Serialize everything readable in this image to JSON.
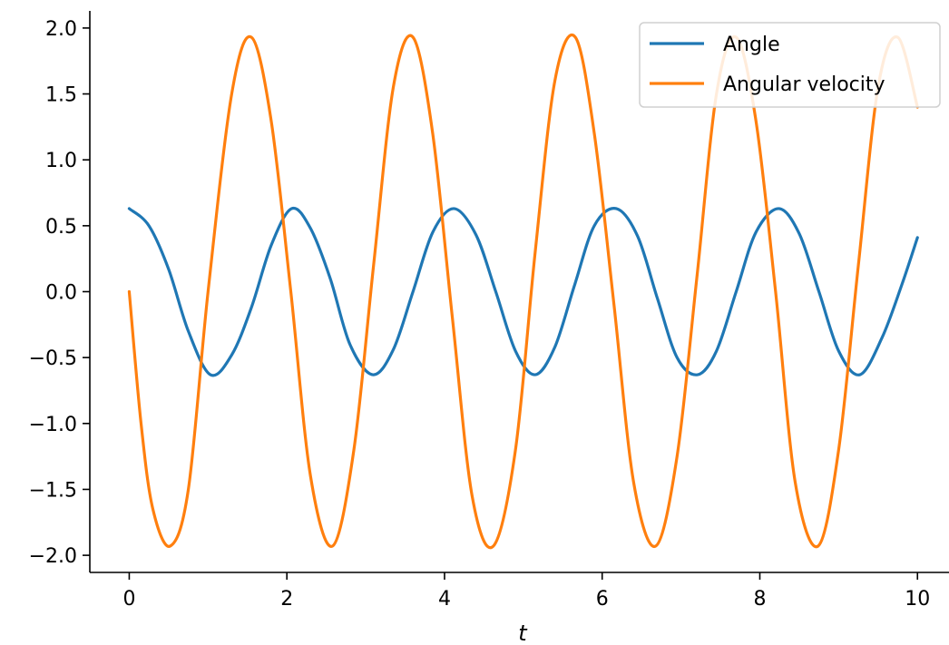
{
  "chart_data": {
    "type": "line",
    "title": "",
    "xlabel": "t",
    "ylabel": "",
    "xlim": [
      -0.5,
      10.4
    ],
    "ylim": [
      -2.13,
      2.13
    ],
    "xticks": [
      0,
      2,
      4,
      6,
      8,
      10
    ],
    "xtick_labels": [
      "0",
      "2",
      "4",
      "6",
      "8",
      "10"
    ],
    "yticks": [
      2.0,
      1.5,
      1.0,
      0.5,
      0.0,
      -0.5,
      -1.0,
      -1.5,
      -2.0
    ],
    "ytick_labels": [
      "2.0",
      "1.5",
      "1.0",
      "0.5",
      "0.0",
      "−0.5",
      "−1.0",
      "−1.5",
      "−2.0"
    ],
    "grid": false,
    "legend_position": "top-right",
    "x_start": 0,
    "x_end": 10,
    "series": [
      {
        "name": "Angle",
        "color": "#1f77b4",
        "description": "pendulum angle, oscillates between about -0.63 and 0.63",
        "x": [
          0,
          0.25,
          0.5,
          0.75,
          1.03,
          1.3,
          1.55,
          1.8,
          2.06,
          2.3,
          2.55,
          2.8,
          3.09,
          3.35,
          3.6,
          3.85,
          4.12,
          4.4,
          4.65,
          4.9,
          5.15,
          5.4,
          5.65,
          5.9,
          6.18,
          6.45,
          6.7,
          6.95,
          7.21,
          7.45,
          7.7,
          7.95,
          8.24,
          8.5,
          8.75,
          9.0,
          9.27,
          9.55,
          9.8,
          10.0
        ],
        "values": [
          0.63,
          0.5,
          0.17,
          -0.3,
          -0.63,
          -0.48,
          -0.12,
          0.35,
          0.63,
          0.48,
          0.1,
          -0.4,
          -0.63,
          -0.44,
          0.0,
          0.45,
          0.63,
          0.43,
          0.0,
          -0.45,
          -0.63,
          -0.42,
          0.05,
          0.5,
          0.63,
          0.42,
          -0.05,
          -0.5,
          -0.63,
          -0.45,
          0.0,
          0.45,
          0.63,
          0.44,
          0.0,
          -0.45,
          -0.63,
          -0.35,
          0.05,
          0.41
        ]
      },
      {
        "name": "Angular velocity",
        "color": "#ff7f0e",
        "description": "pendulum angular velocity, oscillates between about -1.93 and 1.93",
        "x": [
          0,
          0.15,
          0.3,
          0.52,
          0.75,
          1.0,
          1.3,
          1.55,
          1.8,
          2.05,
          2.3,
          2.58,
          2.85,
          3.1,
          3.35,
          3.6,
          3.85,
          4.1,
          4.35,
          4.62,
          4.9,
          5.15,
          5.4,
          5.66,
          5.9,
          6.15,
          6.4,
          6.68,
          6.95,
          7.2,
          7.45,
          7.7,
          7.95,
          8.2,
          8.45,
          8.74,
          9.0,
          9.25,
          9.5,
          9.75,
          10.0
        ],
        "values": [
          0.0,
          -1.0,
          -1.65,
          -1.93,
          -1.5,
          0.0,
          1.5,
          1.93,
          1.3,
          0.0,
          -1.4,
          -1.93,
          -1.2,
          0.2,
          1.55,
          1.93,
          1.2,
          -0.2,
          -1.55,
          -1.93,
          -1.2,
          0.3,
          1.6,
          1.93,
          1.2,
          -0.1,
          -1.45,
          -1.93,
          -1.25,
          0.1,
          1.5,
          1.93,
          1.3,
          0.0,
          -1.45,
          -1.93,
          -1.2,
          0.2,
          1.55,
          1.93,
          1.4
        ]
      }
    ]
  }
}
